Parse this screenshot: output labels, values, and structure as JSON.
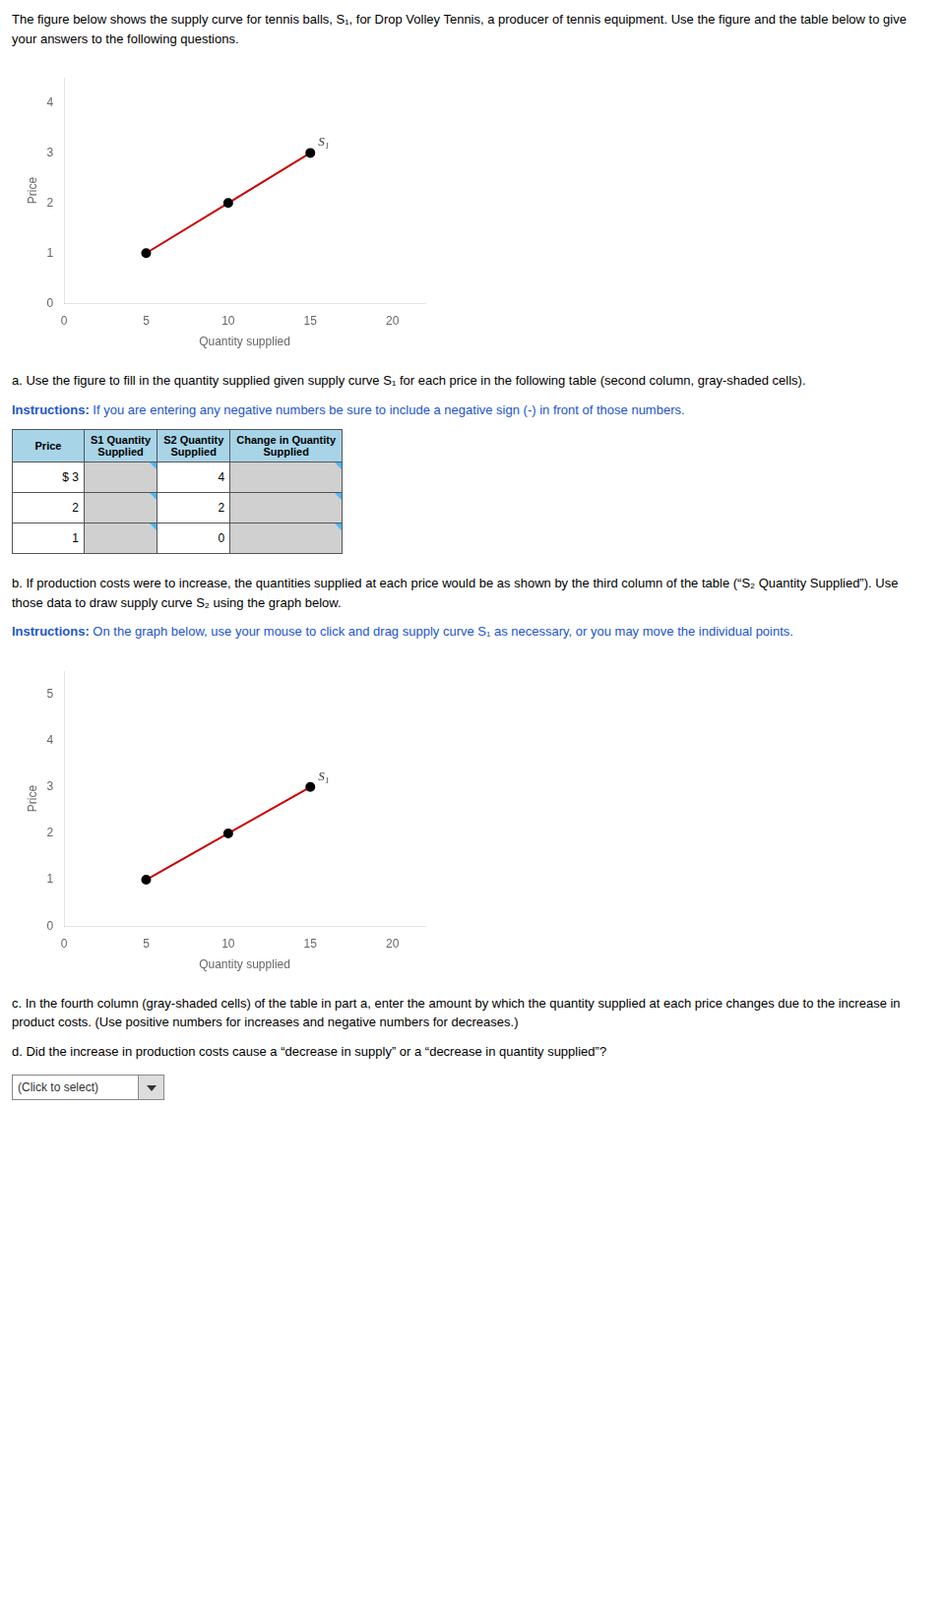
{
  "chart_data": [
    {
      "type": "line",
      "xlabel": "Quantity supplied",
      "ylabel": "Price",
      "xlim": [
        0,
        22
      ],
      "ylim": [
        0,
        4.5
      ],
      "xticks": [
        0,
        5,
        10,
        15,
        20
      ],
      "yticks": [
        0,
        1,
        2,
        3,
        4
      ],
      "grid": false,
      "x": [
        5,
        10,
        15
      ],
      "series": [
        {
          "values": [
            1,
            2,
            3
          ],
          "color": "#cc0000",
          "colors": [
            "#000000",
            "#000000",
            "#000000"
          ],
          "marker": "circle",
          "line_style": "solid"
        }
      ],
      "annotations": [
        {
          "text": "S₁",
          "x": 15,
          "y": 3
        }
      ]
    },
    {
      "type": "line",
      "xlabel": "Quantity supplied",
      "ylabel": "Price",
      "xlim": [
        0,
        22
      ],
      "ylim": [
        0,
        5.5
      ],
      "xticks": [
        0,
        5,
        10,
        15,
        20
      ],
      "yticks": [
        0,
        1,
        2,
        3,
        4,
        5
      ],
      "grid": false,
      "x": [
        5,
        10,
        15
      ],
      "series": [
        {
          "values": [
            1,
            2,
            3
          ],
          "color": "#cc0000",
          "colors": [
            "#000000",
            "#000000",
            "#000000"
          ],
          "marker": "circle",
          "line_style": "solid"
        }
      ],
      "annotations": [
        {
          "text": "S₁",
          "x": 15,
          "y": 3
        }
      ]
    }
  ],
  "texts": {
    "intro": {
      "text": "The figure below shows the supply curve for tennis balls, S₁, for Drop Volley Tennis, a producer of tennis equipment. Use the figure and the table below to give your answers to the following questions."
    },
    "part_a": {
      "text": "a. Use the figure to fill in the quantity supplied given supply curve S₁ for each price in the following table (second column, gray-shaded cells)."
    },
    "instructions_a": {
      "label": "Instructions:",
      "text": "If you are entering any negative numbers be sure to include a negative sign (-) in front of those numbers.",
      "color": "#2255cc"
    },
    "part_b": {
      "text": "b. If production costs were to increase, the quantities supplied at each price would be as shown by the third column of the table (“S₂ Quantity Supplied”). Use those data to draw supply curve S₂ using the graph below."
    },
    "instructions_b": {
      "label": "Instructions:",
      "text": "On the graph below, use your mouse to click and drag supply curve S₁ as necessary, or you may move the individual points.",
      "color": "#2255cc"
    },
    "part_c": {
      "text": "c. In the fourth column (gray-shaded cells) of the table in part a, enter the amount by which the quantity supplied at each price changes due to the increase in product costs. (Use positive numbers for increases and negative numbers for decreases.)"
    },
    "part_d": {
      "text": "d. Did the increase in production costs cause a “decrease in supply” or a “decrease in quantity supplied”?"
    }
  },
  "table": {
    "headers": [
      "Price",
      "S1 Quantity\nSupplied",
      "S2 Quantity\nSupplied",
      "Change in Quantity\nSupplied"
    ],
    "rows": [
      [
        "$ 3",
        null,
        "4",
        null
      ],
      [
        "2",
        null,
        "2",
        null
      ],
      [
        "1",
        null,
        "0",
        null
      ]
    ],
    "header_color": "#a8d4e8",
    "input_color": "#d0d0d0"
  },
  "dropdown": "(Click to select)"
}
